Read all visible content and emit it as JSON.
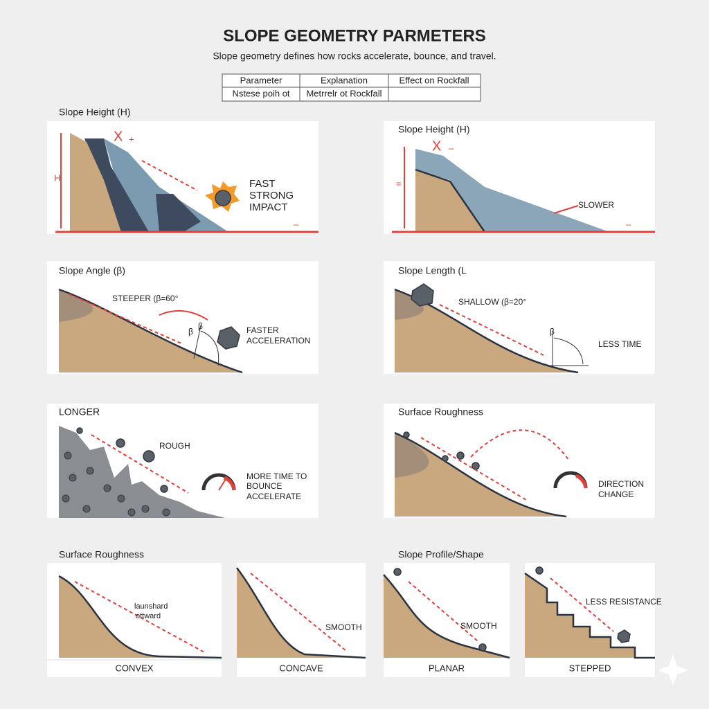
{
  "header": {
    "title": "SLOPE GEOMETRY PARMETERS",
    "subtitle": "Slope geometry defines how rocks accelerate, bounce, and travel."
  },
  "table": {
    "columns": [
      "Parameter",
      "Explanation",
      "Effect on Rockfall"
    ],
    "rows": [
      [
        "Nstese poih ot",
        "Metrrelr ot Rockfall"
      ]
    ]
  },
  "panels": [
    {
      "title": "Slope Height (H)",
      "labels": [
        "H",
        "X",
        "+",
        "FAST",
        "STRONG",
        "IMPACT",
        "–"
      ]
    },
    {
      "title": "Slope Height (H)",
      "labels": [
        "=",
        "X",
        "–",
        "SLOWER",
        "–"
      ]
    },
    {
      "title": "Slope Angle (β)",
      "labels": [
        "STEEPER (β=60°",
        "β",
        "β",
        "FASTER",
        "ACCELERATION"
      ]
    },
    {
      "title": "Slope Length (L",
      "labels": [
        "SHALLOW (β=20°",
        "β",
        "LESS TIME"
      ]
    },
    {
      "title": "LONGER",
      "labels": [
        "ROUGH",
        "MORE TIME TO",
        "BOUNCE",
        "ACCELERATE"
      ]
    },
    {
      "title": "Surface Roughness",
      "labels": [
        "DIRECTION",
        "CHANGE"
      ]
    }
  ],
  "sections": [
    "Surface Roughness",
    "Slope Profile/Shape"
  ],
  "profiles": [
    {
      "name": "CONVEX",
      "labels": [
        "launshard",
        "ottward"
      ]
    },
    {
      "name": "CONCAVE",
      "labels": [
        "SMOOTH"
      ]
    },
    {
      "name": "PLANAR",
      "labels": [
        "SMOOTH"
      ]
    },
    {
      "name": "STEPPED",
      "labels": [
        "LESS RESISTANCE"
      ]
    }
  ]
}
